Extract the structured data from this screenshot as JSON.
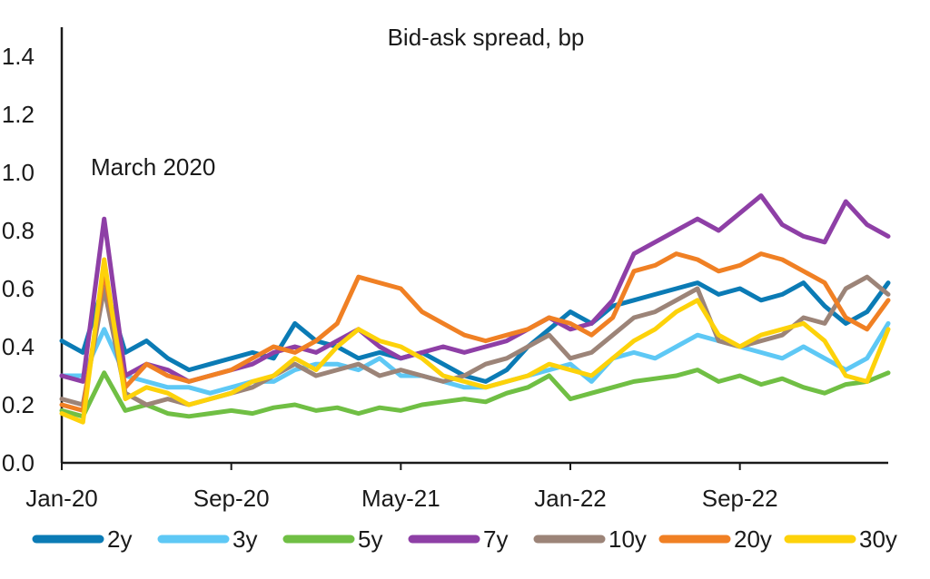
{
  "chart_data": {
    "type": "line",
    "title": "Bid-ask spread, bp",
    "annotation": "March 2020",
    "xlabel": "",
    "ylabel": "",
    "ylim": [
      0.0,
      1.5
    ],
    "y_ticks": [
      "0.0",
      "0.2",
      "0.4",
      "0.6",
      "0.8",
      "1.0",
      "1.2",
      "1.4"
    ],
    "x_ticks": [
      "Jan-20",
      "Sep-20",
      "May-21",
      "Jan-22",
      "Sep-22"
    ],
    "x_range": [
      "2020-01",
      "2023-04"
    ],
    "grid": false,
    "legend_position": "bottom",
    "x": [
      "2020-01",
      "2020-02",
      "2020-03",
      "2020-04",
      "2020-05",
      "2020-06",
      "2020-07",
      "2020-08",
      "2020-09",
      "2020-10",
      "2020-11",
      "2020-12",
      "2021-01",
      "2021-02",
      "2021-03",
      "2021-04",
      "2021-05",
      "2021-06",
      "2021-07",
      "2021-08",
      "2021-09",
      "2021-10",
      "2021-11",
      "2021-12",
      "2022-01",
      "2022-02",
      "2022-03",
      "2022-04",
      "2022-05",
      "2022-06",
      "2022-07",
      "2022-08",
      "2022-09",
      "2022-10",
      "2022-11",
      "2022-12",
      "2023-01",
      "2023-02",
      "2023-03",
      "2023-04"
    ],
    "series": [
      {
        "name": "2y",
        "color": "#0b7bb5",
        "values": [
          0.42,
          0.38,
          0.62,
          0.38,
          0.42,
          0.36,
          0.32,
          0.34,
          0.36,
          0.38,
          0.36,
          0.48,
          0.42,
          0.4,
          0.36,
          0.38,
          0.36,
          0.38,
          0.34,
          0.3,
          0.28,
          0.32,
          0.4,
          0.46,
          0.52,
          0.48,
          0.54,
          0.56,
          0.58,
          0.6,
          0.62,
          0.58,
          0.6,
          0.56,
          0.58,
          0.62,
          0.54,
          0.48,
          0.52,
          0.62
        ]
      },
      {
        "name": "3y",
        "color": "#5ec8f5",
        "values": [
          0.3,
          0.3,
          0.46,
          0.3,
          0.28,
          0.26,
          0.26,
          0.24,
          0.26,
          0.28,
          0.28,
          0.32,
          0.34,
          0.34,
          0.32,
          0.36,
          0.3,
          0.3,
          0.28,
          0.26,
          0.26,
          0.28,
          0.3,
          0.32,
          0.34,
          0.28,
          0.36,
          0.38,
          0.36,
          0.4,
          0.44,
          0.42,
          0.4,
          0.38,
          0.36,
          0.4,
          0.36,
          0.32,
          0.36,
          0.48
        ]
      },
      {
        "name": "5y",
        "color": "#70bf44",
        "values": [
          0.18,
          0.16,
          0.31,
          0.18,
          0.2,
          0.17,
          0.16,
          0.17,
          0.18,
          0.17,
          0.19,
          0.2,
          0.18,
          0.19,
          0.17,
          0.19,
          0.18,
          0.2,
          0.21,
          0.22,
          0.21,
          0.24,
          0.26,
          0.3,
          0.22,
          0.24,
          0.26,
          0.28,
          0.29,
          0.3,
          0.32,
          0.28,
          0.3,
          0.27,
          0.29,
          0.26,
          0.24,
          0.27,
          0.28,
          0.31
        ]
      },
      {
        "name": "7y",
        "color": "#8e3fa6",
        "values": [
          0.3,
          0.28,
          0.84,
          0.3,
          0.34,
          0.32,
          0.28,
          0.3,
          0.32,
          0.34,
          0.38,
          0.4,
          0.38,
          0.42,
          0.46,
          0.4,
          0.36,
          0.38,
          0.4,
          0.38,
          0.4,
          0.42,
          0.46,
          0.5,
          0.46,
          0.48,
          0.56,
          0.72,
          0.76,
          0.8,
          0.84,
          0.8,
          0.86,
          0.92,
          0.82,
          0.78,
          0.76,
          0.9,
          0.82,
          0.78
        ]
      },
      {
        "name": "10y",
        "color": "#9c8478",
        "values": [
          0.22,
          0.2,
          0.6,
          0.24,
          0.2,
          0.22,
          0.2,
          0.22,
          0.24,
          0.26,
          0.3,
          0.34,
          0.3,
          0.32,
          0.34,
          0.3,
          0.32,
          0.3,
          0.28,
          0.3,
          0.34,
          0.36,
          0.4,
          0.44,
          0.36,
          0.38,
          0.44,
          0.5,
          0.52,
          0.56,
          0.6,
          0.42,
          0.4,
          0.42,
          0.44,
          0.5,
          0.48,
          0.6,
          0.64,
          0.58
        ]
      },
      {
        "name": "20y",
        "color": "#f08024",
        "values": [
          0.2,
          0.18,
          0.66,
          0.26,
          0.34,
          0.3,
          0.28,
          0.3,
          0.32,
          0.36,
          0.4,
          0.38,
          0.42,
          0.48,
          0.64,
          0.62,
          0.6,
          0.52,
          0.48,
          0.44,
          0.42,
          0.44,
          0.46,
          0.5,
          0.48,
          0.44,
          0.5,
          0.66,
          0.68,
          0.72,
          0.7,
          0.66,
          0.68,
          0.72,
          0.7,
          0.66,
          0.62,
          0.5,
          0.46,
          0.56
        ]
      },
      {
        "name": "30y",
        "color": "#fdd20a",
        "values": [
          0.17,
          0.14,
          0.7,
          0.22,
          0.26,
          0.24,
          0.2,
          0.22,
          0.24,
          0.28,
          0.3,
          0.36,
          0.32,
          0.4,
          0.46,
          0.42,
          0.4,
          0.36,
          0.3,
          0.28,
          0.26,
          0.28,
          0.3,
          0.34,
          0.32,
          0.3,
          0.36,
          0.42,
          0.46,
          0.52,
          0.56,
          0.44,
          0.4,
          0.44,
          0.46,
          0.48,
          0.42,
          0.3,
          0.28,
          0.46
        ]
      }
    ]
  }
}
